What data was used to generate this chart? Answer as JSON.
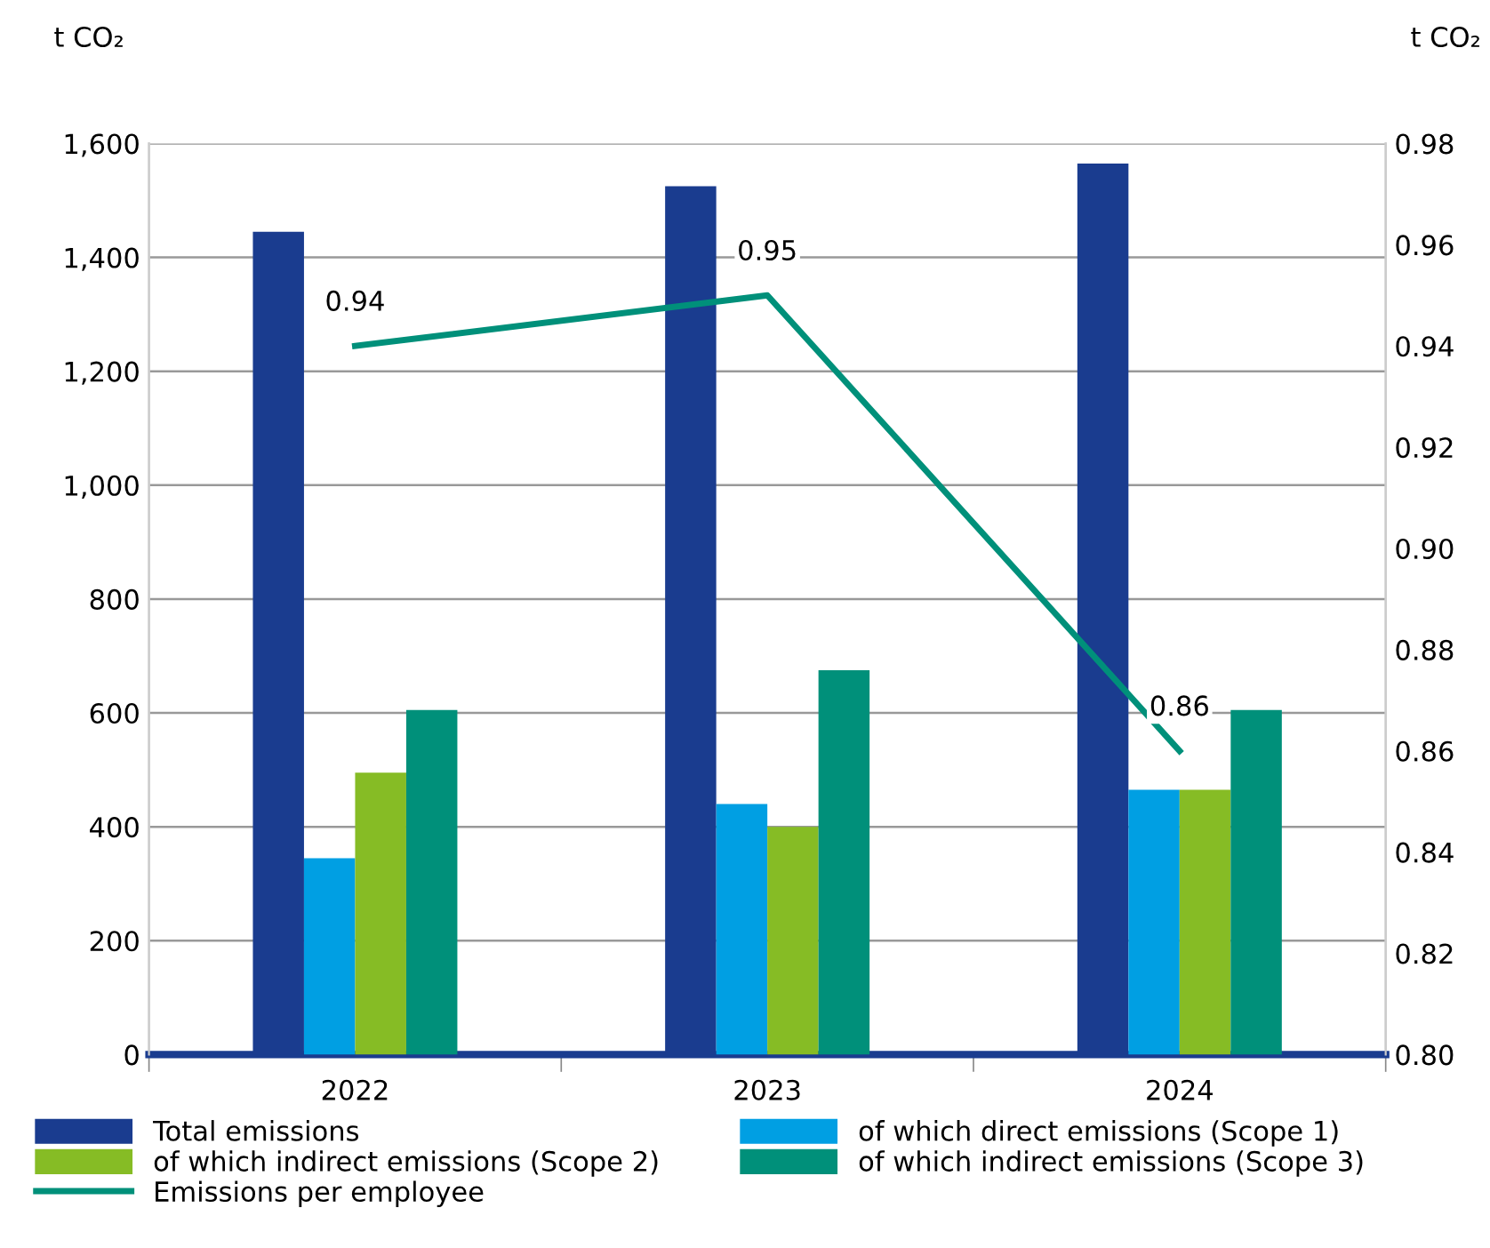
{
  "chart_data": {
    "type": "bar",
    "ylabel": "t CO₂",
    "y2label": "t CO₂",
    "categories": [
      "2022",
      "2023",
      "2024"
    ],
    "series": [
      {
        "name": "Total emissions",
        "color": "#1a3c8f",
        "values": [
          1445,
          1525,
          1565
        ]
      },
      {
        "name": "of which direct emissions (Scope 1)",
        "color": "#009fe3",
        "values": [
          345,
          440,
          465
        ]
      },
      {
        "name": "of which indirect emissions (Scope 2)",
        "color": "#86bc25",
        "values": [
          495,
          400,
          465
        ]
      },
      {
        "name": "of which indirect emissions (Scope 3)",
        "color": "#00907a",
        "values": [
          605,
          675,
          605
        ]
      },
      {
        "name": "Emissions per employee",
        "type": "line",
        "axis": "y2",
        "color": "#00907a",
        "values": [
          0.94,
          0.95,
          0.86
        ],
        "data_labels": true
      }
    ],
    "ylim": [
      0,
      1600
    ],
    "yticks": [
      {
        "value": 0,
        "label": "0"
      },
      {
        "value": 200,
        "label": "200"
      },
      {
        "value": 400,
        "label": "400"
      },
      {
        "value": 600,
        "label": "600"
      },
      {
        "value": 800,
        "label": "800"
      },
      {
        "value": 1000,
        "label": "1,000"
      },
      {
        "value": 1200,
        "label": "1,200"
      },
      {
        "value": 1400,
        "label": "1,400"
      },
      {
        "value": 1600,
        "label": "1,600"
      }
    ],
    "y2lim": [
      0.8,
      0.98
    ],
    "y2ticks": [
      {
        "value": 0.8,
        "label": "0.80"
      },
      {
        "value": 0.82,
        "label": "0.82"
      },
      {
        "value": 0.84,
        "label": "0.84"
      },
      {
        "value": 0.86,
        "label": "0.86"
      },
      {
        "value": 0.88,
        "label": "0.88"
      },
      {
        "value": 0.9,
        "label": "0.90"
      },
      {
        "value": 0.92,
        "label": "0.92"
      },
      {
        "value": 0.94,
        "label": "0.94"
      },
      {
        "value": 0.96,
        "label": "0.96"
      },
      {
        "value": 0.98,
        "label": "0.98"
      }
    ],
    "grid": "y",
    "legend": "bottom",
    "marker": "none",
    "line_style": "solid"
  }
}
